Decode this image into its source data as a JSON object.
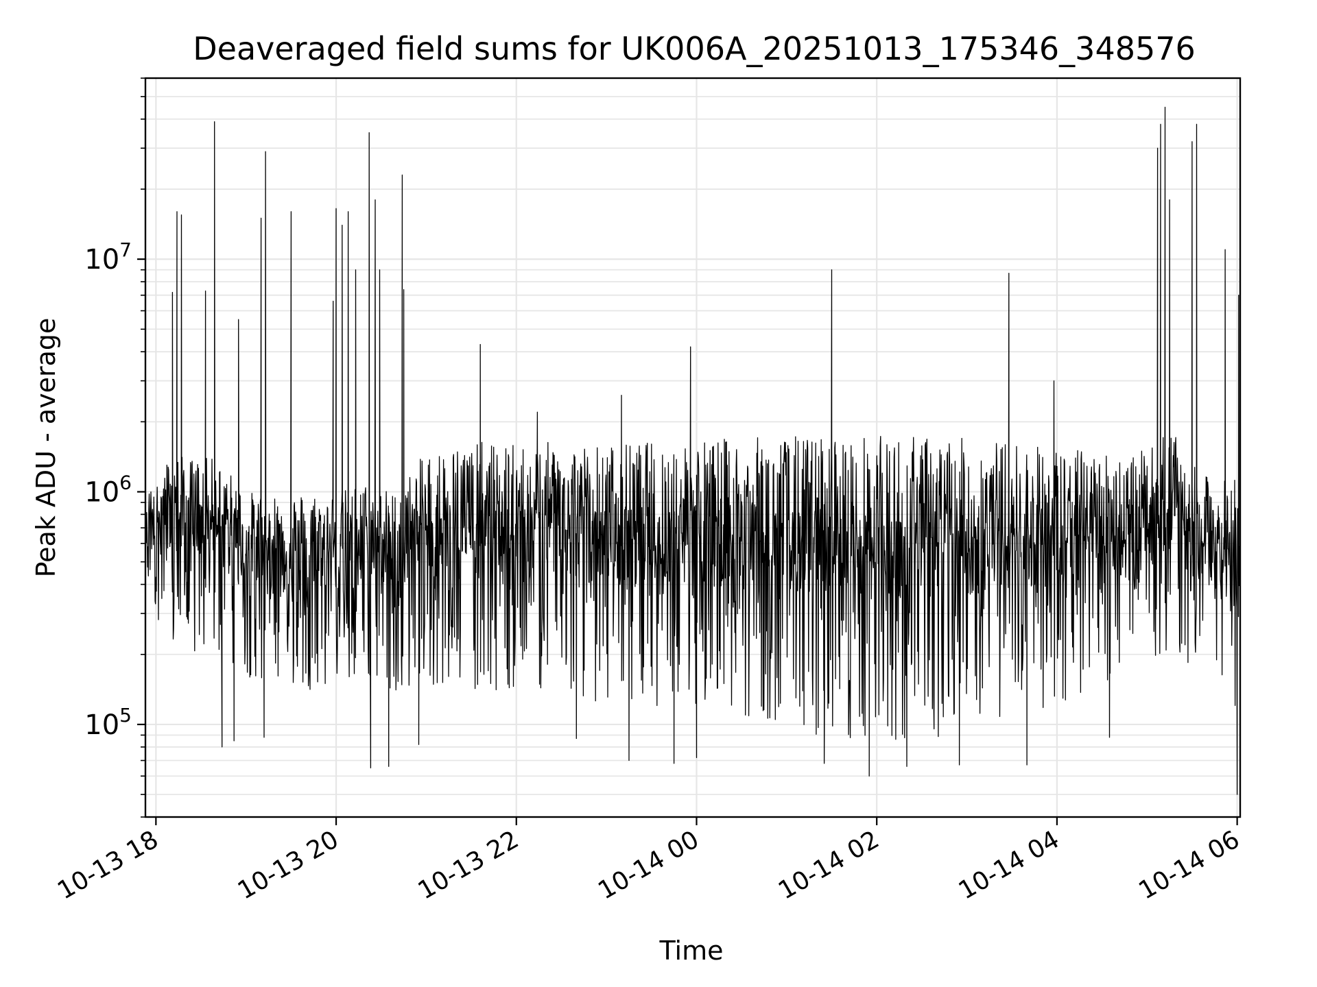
{
  "chart_data": {
    "type": "line",
    "title": "Deaveraged field sums for UK006A_20251013_175346_348576",
    "xlabel": "Time",
    "ylabel": "Peak ADU - average",
    "yscale": "log",
    "ylim": [
      40000,
      60000000
    ],
    "xlim": [
      "2025-10-13 17:53",
      "2025-10-14 06:02"
    ],
    "grid": true,
    "line_color": "#000000",
    "grid_color": "#e6e6e6",
    "x_ticks": [
      {
        "value": "2025-10-13 18:00",
        "label": "10-13 18"
      },
      {
        "value": "2025-10-13 20:00",
        "label": "10-13 20"
      },
      {
        "value": "2025-10-13 22:00",
        "label": "10-13 22"
      },
      {
        "value": "2025-10-14 00:00",
        "label": "10-14 00"
      },
      {
        "value": "2025-10-14 02:00",
        "label": "10-14 02"
      },
      {
        "value": "2025-10-14 04:00",
        "label": "10-14 04"
      },
      {
        "value": "2025-10-14 06:00",
        "label": "10-14 06"
      }
    ],
    "y_ticks": [
      {
        "value": 100000,
        "base": "10",
        "exp": "5"
      },
      {
        "value": 1000000,
        "base": "10",
        "exp": "6"
      },
      {
        "value": 10000000,
        "base": "10",
        "exp": "7"
      }
    ],
    "series": [
      {
        "x": [
          "2025-10-13 17:53",
          "2025-10-13 18:10",
          "2025-10-13 18:20",
          "2025-10-13 18:40",
          "2025-10-13 18:50",
          "2025-10-13 19:00",
          "2025-10-13 19:20",
          "2025-10-13 19:40",
          "2025-10-13 20:00",
          "2025-10-13 20:20",
          "2025-10-13 20:40",
          "2025-10-13 21:00",
          "2025-10-13 21:30",
          "2025-10-13 22:00",
          "2025-10-13 22:30",
          "2025-10-13 23:00",
          "2025-10-13 23:30",
          "2025-10-14 00:00",
          "2025-10-14 00:30",
          "2025-10-14 01:00",
          "2025-10-14 01:30",
          "2025-10-14 02:00",
          "2025-10-14 02:30",
          "2025-10-14 03:00",
          "2025-10-14 03:30",
          "2025-10-14 04:00",
          "2025-10-14 04:30",
          "2025-10-14 05:00",
          "2025-10-14 05:15",
          "2025-10-14 05:30",
          "2025-10-14 05:45",
          "2025-10-14 06:02"
        ],
        "upper": [
          800000,
          1500000,
          1400000,
          1400000,
          1200000,
          1000000,
          1000000,
          1000000,
          1000000,
          1100000,
          1000000,
          1500000,
          1650000,
          1600000,
          1650000,
          1600000,
          1650000,
          1700000,
          1700000,
          1750000,
          1750000,
          1750000,
          1750000,
          1700000,
          1650000,
          1550000,
          1500000,
          1500000,
          1900000,
          1300000,
          1100000,
          1200000
        ],
        "lower": [
          400000,
          200000,
          180000,
          200000,
          180000,
          160000,
          150000,
          140000,
          150000,
          150000,
          140000,
          150000,
          140000,
          140000,
          140000,
          120000,
          120000,
          120000,
          110000,
          100000,
          85000,
          80000,
          85000,
          95000,
          110000,
          120000,
          140000,
          150000,
          200000,
          180000,
          150000,
          100000
        ],
        "spikes": [
          {
            "x": "2025-10-13 18:11",
            "y": 7200000
          },
          {
            "x": "2025-10-13 18:14",
            "y": 16000000
          },
          {
            "x": "2025-10-13 18:17",
            "y": 15500000
          },
          {
            "x": "2025-10-13 18:33",
            "y": 7300000
          },
          {
            "x": "2025-10-13 18:39",
            "y": 39000000
          },
          {
            "x": "2025-10-13 18:55",
            "y": 5500000
          },
          {
            "x": "2025-10-13 19:10",
            "y": 15000000
          },
          {
            "x": "2025-10-13 19:13",
            "y": 29000000
          },
          {
            "x": "2025-10-13 19:30",
            "y": 16000000
          },
          {
            "x": "2025-10-13 19:58",
            "y": 6600000
          },
          {
            "x": "2025-10-13 20:00",
            "y": 16500000
          },
          {
            "x": "2025-10-13 20:04",
            "y": 14000000
          },
          {
            "x": "2025-10-13 20:08",
            "y": 16000000
          },
          {
            "x": "2025-10-13 20:13",
            "y": 9000000
          },
          {
            "x": "2025-10-13 20:22",
            "y": 35000000
          },
          {
            "x": "2025-10-13 20:26",
            "y": 18000000
          },
          {
            "x": "2025-10-13 20:29",
            "y": 9000000
          },
          {
            "x": "2025-10-13 20:44",
            "y": 23000000
          },
          {
            "x": "2025-10-13 20:45",
            "y": 7400000
          },
          {
            "x": "2025-10-13 21:36",
            "y": 4300000
          },
          {
            "x": "2025-10-13 22:14",
            "y": 2200000
          },
          {
            "x": "2025-10-13 23:10",
            "y": 2600000
          },
          {
            "x": "2025-10-13 23:56",
            "y": 4200000
          },
          {
            "x": "2025-10-14 01:30",
            "y": 9000000
          },
          {
            "x": "2025-10-14 03:28",
            "y": 8700000
          },
          {
            "x": "2025-10-14 03:58",
            "y": 3000000
          },
          {
            "x": "2025-10-14 05:07",
            "y": 30000000
          },
          {
            "x": "2025-10-14 05:09",
            "y": 38000000
          },
          {
            "x": "2025-10-14 05:12",
            "y": 45000000
          },
          {
            "x": "2025-10-14 05:15",
            "y": 18000000
          },
          {
            "x": "2025-10-14 05:30",
            "y": 32000000
          },
          {
            "x": "2025-10-14 05:33",
            "y": 38000000
          },
          {
            "x": "2025-10-14 05:52",
            "y": 11000000
          },
          {
            "x": "2025-10-14 06:01",
            "y": 7000000
          }
        ],
        "dips": [
          {
            "x": "2025-10-13 18:44",
            "y": 80000
          },
          {
            "x": "2025-10-13 18:52",
            "y": 85000
          },
          {
            "x": "2025-10-13 19:12",
            "y": 88000
          },
          {
            "x": "2025-10-13 20:23",
            "y": 65000
          },
          {
            "x": "2025-10-13 20:35",
            "y": 66000
          },
          {
            "x": "2025-10-13 20:55",
            "y": 82000
          },
          {
            "x": "2025-10-13 22:40",
            "y": 87000
          },
          {
            "x": "2025-10-13 23:15",
            "y": 70000
          },
          {
            "x": "2025-10-13 23:45",
            "y": 68000
          },
          {
            "x": "2025-10-14 00:00",
            "y": 72000
          },
          {
            "x": "2025-10-14 01:25",
            "y": 68000
          },
          {
            "x": "2025-10-14 01:55",
            "y": 60000
          },
          {
            "x": "2025-10-14 02:20",
            "y": 66000
          },
          {
            "x": "2025-10-14 02:55",
            "y": 67000
          },
          {
            "x": "2025-10-14 03:40",
            "y": 67000
          },
          {
            "x": "2025-10-14 04:35",
            "y": 88000
          },
          {
            "x": "2025-10-14 06:00",
            "y": 50000
          }
        ]
      }
    ]
  }
}
